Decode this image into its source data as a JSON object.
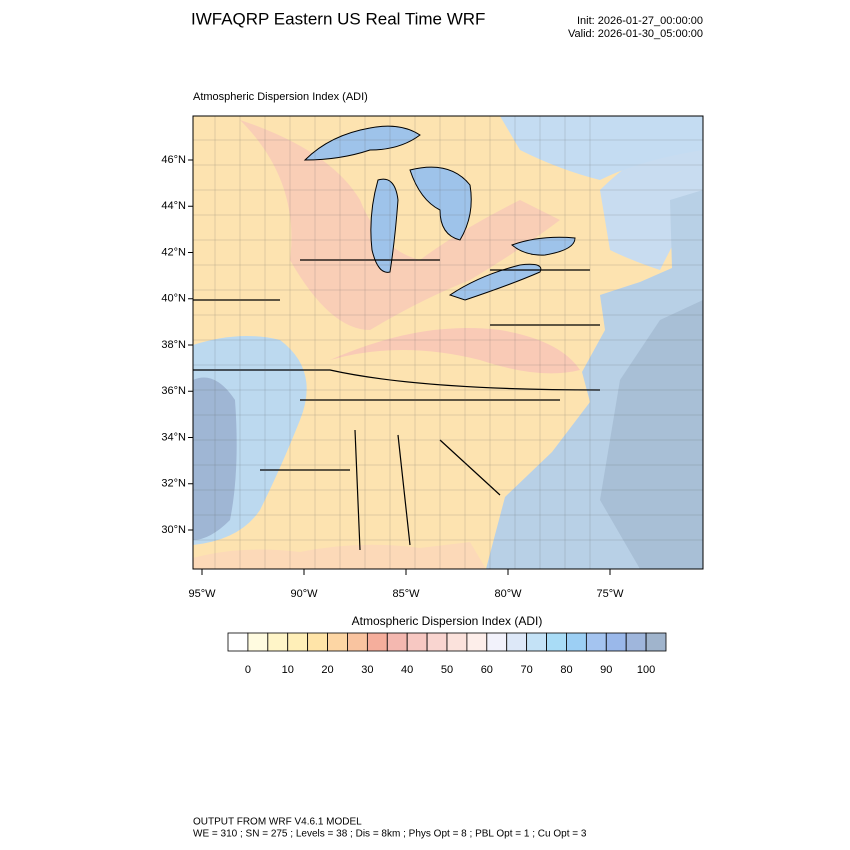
{
  "header": {
    "title": "IWFAQRP Eastern US Real Time WRF",
    "init": "Init: 2026-01-27_00:00:00",
    "valid": "Valid: 2026-01-30_05:00:00"
  },
  "map": {
    "title": "Atmospheric Dispersion Index   (ADI)",
    "lat_labels": [
      "46°N",
      "44°N",
      "42°N",
      "40°N",
      "38°N",
      "36°N",
      "34°N",
      "32°N",
      "30°N"
    ],
    "lon_labels": [
      "95°W",
      "90°W",
      "85°W",
      "80°W",
      "75°W"
    ]
  },
  "colorbar": {
    "title": "Atmospheric Dispersion Index  (ADI)",
    "labels": [
      "0",
      "10",
      "20",
      "30",
      "40",
      "50",
      "60",
      "70",
      "80",
      "90",
      "100"
    ],
    "colors": [
      "#ffffff",
      "#fffbe0",
      "#fff5c8",
      "#ffefb8",
      "#ffe4a8",
      "#fdd6a4",
      "#f9c4a0",
      "#f5ae9c",
      "#f4b8b0",
      "#f7c8c2",
      "#f9d5d0",
      "#fbe2dc",
      "#fdeeea",
      "#f2f2fb",
      "#dde8f8",
      "#c4e2f6",
      "#a9dcf6",
      "#9ccff4",
      "#a4c4f0",
      "#9ab8ea",
      "#9fb6dc",
      "#a0b4cc"
    ]
  },
  "footer": {
    "line1": "OUTPUT FROM WRF V4.6.1 MODEL",
    "line2": "WE = 310 ; SN = 275 ; Levels = 38 ; Dis = 8km ; Phys Opt = 8 ; PBL Opt = 1 ; Cu Opt = 3"
  }
}
